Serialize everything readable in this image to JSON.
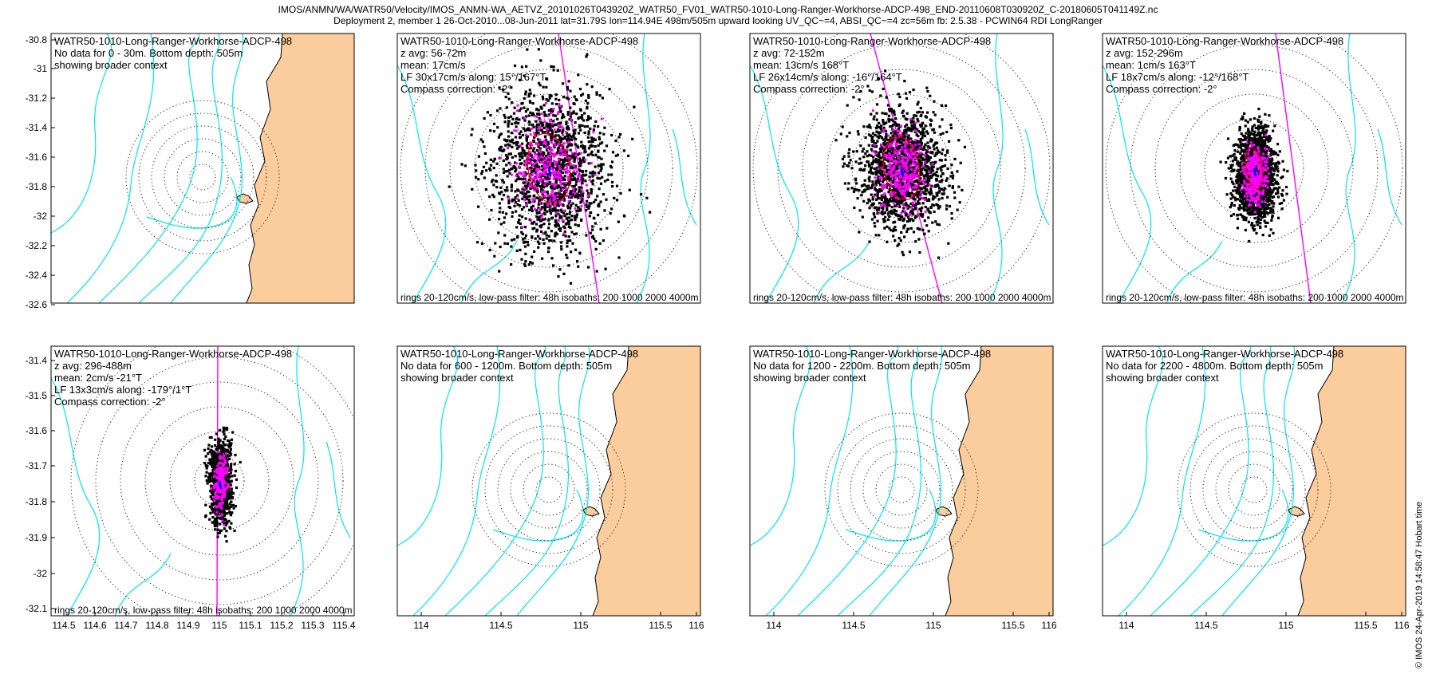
{
  "header": {
    "line1": "IMOS/ANMN/WA/WATR50/Velocity/IMOS_ANMN-WA_AETVZ_20101026T043920Z_WATR50_FV01_WATR50-1010-Long-Ranger-Workhorse-ADCP-498_END-20110608T030920Z_C-20180605T041149Z.nc",
    "line2": "Deployment 2, member 1 26-Oct-2010...08-Jun-2011 lat=31.79S lon=114.94E 498m/505m upward looking UV_QC~=4, ABSI_QC~=4 zc=56m fb: 2.5.38 - PCWIN64 RDI LongRanger"
  },
  "footer": "© IMOS 24-Apr-2019 14:58:47 Hobart time",
  "colors": {
    "land": "#fbcc9c",
    "isobath": "#00e5ee",
    "scatter_raw": "#000000",
    "scatter_lf": "#ff00ff",
    "ellipse": "#e00000",
    "mean_arrow": "#0000ff",
    "principal_axis": "#ff00ff"
  },
  "chart_data": [
    {
      "id": "p1",
      "type": "scatter",
      "nodata": true,
      "title": "WATR50-1010-Long-Ranger-Workhorse-ADCP-498",
      "lines": [
        "No data for 0 - 30m. Bottom depth: 505m",
        "showing broader context"
      ],
      "footer": "",
      "yticks": [
        "-30.8",
        "-31",
        "-31.2",
        "-31.4",
        "-31.6",
        "-31.8",
        "-32",
        "-32.2",
        "-32.4",
        "-32.6"
      ],
      "xticks": []
    },
    {
      "id": "p2",
      "type": "scatter",
      "nodata": false,
      "title": "WATR50-1010-Long-Ranger-Workhorse-ADCP-498",
      "lines": [
        "z avg: 56-72m",
        "mean: 17cm/s",
        "LF 30x17cm/s along: 15°/167°T",
        "Compass correction: -2°"
      ],
      "footer": "rings 20-120cm/s, low-pass filter: 48h isobaths: 200 1000 2000 4000m",
      "yticks": [],
      "xticks": []
    },
    {
      "id": "p3",
      "type": "scatter",
      "nodata": false,
      "title": "WATR50-1010-Long-Ranger-Workhorse-ADCP-498",
      "lines": [
        "z avg: 72-152m",
        "mean: 13cm/s 168°T",
        "LF 26x14cm/s along: -16°/164°T",
        "Compass correction: -2°"
      ],
      "footer": "rings 20-120cm/s, low-pass filter: 48h isobaths: 200 1000 2000 4000m",
      "yticks": [],
      "xticks": []
    },
    {
      "id": "p4",
      "type": "scatter",
      "nodata": false,
      "title": "WATR50-1010-Long-Ranger-Workhorse-ADCP-498",
      "lines": [
        "z avg: 152-296m",
        "mean: 1cm/s 163°T",
        "LF 18x7cm/s along: -12°/168°T",
        "Compass correction: -2°"
      ],
      "footer": "rings 20-120cm/s, low-pass filter: 48h isobaths: 200 1000 2000 4000m",
      "yticks": [],
      "xticks": []
    },
    {
      "id": "p5",
      "type": "scatter",
      "nodata": false,
      "title": "WATR50-1010-Long-Ranger-Workhorse-ADCP-498",
      "lines": [
        "z avg: 296-488m",
        "mean: 2cm/s -21°T",
        "LF 13x3cm/s along: -179°/1°T",
        "Compass correction: -2°"
      ],
      "footer": "rings 20-120cm/s, low-pass filter: 48h isobaths: 200 1000 2000 4000m",
      "yticks": [
        "-31.4",
        "-31.5",
        "-31.6",
        "-31.7",
        "-31.8",
        "-31.9",
        "-32",
        "-32.1"
      ],
      "xticks": [
        "114.5",
        "114.6",
        "114.7",
        "114.8",
        "114.9",
        "115",
        "115.1",
        "115.2",
        "115.3",
        "115.4"
      ]
    },
    {
      "id": "p6",
      "type": "scatter",
      "nodata": true,
      "title": "WATR50-1010-Long-Ranger-Workhorse-ADCP-498",
      "lines": [
        "No data for 600 - 1200m. Bottom depth: 505m",
        "showing broader context"
      ],
      "footer": "",
      "yticks": [],
      "xticks": [
        "114",
        "114.5",
        "115",
        "115.5",
        "116"
      ]
    },
    {
      "id": "p7",
      "type": "scatter",
      "nodata": true,
      "title": "WATR50-1010-Long-Ranger-Workhorse-ADCP-498",
      "lines": [
        "No data for 1200 - 2200m. Bottom depth: 505m",
        "showing broader context"
      ],
      "footer": "",
      "yticks": [],
      "xticks": [
        "114",
        "114.5",
        "115",
        "115.5",
        "116"
      ]
    },
    {
      "id": "p8",
      "type": "scatter",
      "nodata": true,
      "title": "WATR50-1010-Long-Ranger-Workhorse-ADCP-498",
      "lines": [
        "No data for 2200 - 4800m. Bottom depth: 505m",
        "showing broader context"
      ],
      "footer": "",
      "yticks": [],
      "xticks": [
        "114",
        "114.5",
        "115",
        "115.5",
        "116"
      ]
    }
  ]
}
